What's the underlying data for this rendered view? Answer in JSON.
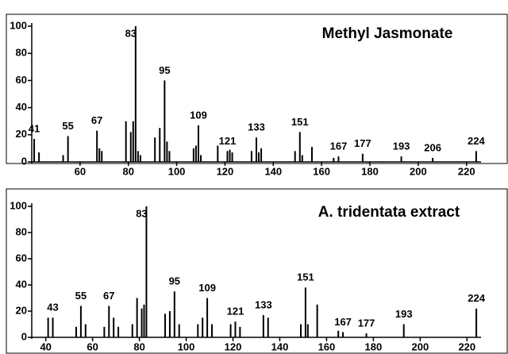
{
  "chart_data": [
    {
      "type": "bar",
      "title": "Methyl Jasmonate",
      "x": [
        41,
        43,
        53,
        55,
        67,
        68,
        69,
        79,
        81,
        82,
        83,
        84,
        85,
        91,
        93,
        95,
        96,
        97,
        107,
        108,
        109,
        110,
        117,
        121,
        122,
        123,
        131,
        133,
        134,
        135,
        149,
        151,
        152,
        156,
        165,
        167,
        177,
        193,
        206,
        224
      ],
      "values": [
        17,
        7,
        5,
        19,
        23,
        10,
        8,
        30,
        22,
        30,
        100,
        8,
        5,
        18,
        25,
        60,
        15,
        8,
        10,
        12,
        27,
        5,
        12,
        8,
        9,
        7,
        8,
        18,
        7,
        10,
        8,
        22,
        5,
        11,
        3,
        4,
        6,
        4,
        3,
        8
      ],
      "peak_labels": [
        41,
        55,
        67,
        83,
        95,
        109,
        121,
        133,
        151,
        167,
        177,
        193,
        206,
        224
      ],
      "color": "#000000",
      "xlim": [
        40,
        226
      ],
      "xticks": [
        60,
        80,
        100,
        120,
        140,
        160,
        180,
        200,
        220
      ],
      "ylim": [
        0,
        100
      ],
      "yticks": [
        0,
        20,
        40,
        60,
        80,
        100
      ]
    },
    {
      "type": "bar",
      "title": "A. tridentata extract",
      "x": [
        41,
        43,
        53,
        55,
        57,
        65,
        67,
        69,
        71,
        77,
        79,
        81,
        82,
        83,
        91,
        93,
        95,
        97,
        105,
        107,
        109,
        111,
        119,
        121,
        123,
        133,
        135,
        149,
        151,
        152,
        156,
        165,
        167,
        177,
        193,
        224
      ],
      "values": [
        15,
        15,
        8,
        24,
        10,
        8,
        24,
        15,
        8,
        10,
        30,
        22,
        25,
        100,
        18,
        20,
        35,
        10,
        10,
        15,
        30,
        10,
        10,
        12,
        8,
        17,
        15,
        10,
        38,
        10,
        25,
        5,
        4,
        3,
        10,
        22
      ],
      "peak_labels": [
        43,
        55,
        67,
        83,
        95,
        109,
        121,
        133,
        151,
        167,
        177,
        193,
        224
      ],
      "color": "#000000",
      "xlim": [
        34,
        226
      ],
      "xticks": [
        40,
        60,
        80,
        100,
        120,
        140,
        160,
        180,
        200,
        220
      ],
      "ylim": [
        0,
        100
      ],
      "yticks": [
        0,
        20,
        40,
        60,
        80,
        100
      ]
    }
  ]
}
